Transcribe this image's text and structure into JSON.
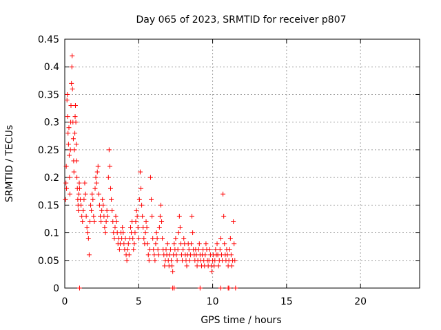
{
  "chart_data": {
    "type": "scatter",
    "title": "Day 065 of 2023, SRMTID for receiver p807",
    "xlabel": "GPS time / hours",
    "ylabel": "SRMTID / TECUs",
    "xlim": [
      0,
      24
    ],
    "ylim": [
      0,
      0.45
    ],
    "xticks": [
      "0",
      "5",
      "10",
      "15",
      "20"
    ],
    "yticks": [
      "0",
      "0.05",
      "0.1",
      "0.15",
      "0.2",
      "0.25",
      "0.3",
      "0.35",
      "0.4",
      "0.45"
    ],
    "xtick_values": [
      0,
      5,
      10,
      15,
      20
    ],
    "ytick_values": [
      0,
      0.05,
      0.1,
      0.15,
      0.2,
      0.25,
      0.3,
      0.35,
      0.4,
      0.45
    ],
    "grid": true,
    "marker": "plus",
    "color": "#ff0000",
    "series": [
      {
        "name": "SRMTID",
        "points": [
          [
            0.05,
            0.16
          ],
          [
            0.08,
            0.19
          ],
          [
            0.1,
            0.22
          ],
          [
            0.12,
            0.18
          ],
          [
            0.15,
            0.34
          ],
          [
            0.18,
            0.35
          ],
          [
            0.2,
            0.31
          ],
          [
            0.22,
            0.28
          ],
          [
            0.25,
            0.26
          ],
          [
            0.28,
            0.29
          ],
          [
            0.3,
            0.24
          ],
          [
            0.32,
            0.2
          ],
          [
            0.35,
            0.17
          ],
          [
            0.38,
            0.25
          ],
          [
            0.4,
            0.3
          ],
          [
            0.42,
            0.33
          ],
          [
            0.45,
            0.37
          ],
          [
            0.48,
            0.4
          ],
          [
            0.5,
            0.42
          ],
          [
            0.52,
            0.36
          ],
          [
            0.55,
            0.3
          ],
          [
            0.58,
            0.27
          ],
          [
            0.6,
            0.23
          ],
          [
            0.62,
            0.21
          ],
          [
            0.65,
            0.25
          ],
          [
            0.68,
            0.28
          ],
          [
            0.7,
            0.31
          ],
          [
            0.72,
            0.33
          ],
          [
            0.75,
            0.3
          ],
          [
            0.78,
            0.26
          ],
          [
            0.8,
            0.23
          ],
          [
            0.82,
            0.2
          ],
          [
            0.85,
            0.18
          ],
          [
            0.88,
            0.16
          ],
          [
            0.9,
            0.15
          ],
          [
            0.92,
            0.14
          ],
          [
            0.95,
            0.17
          ],
          [
            0.98,
            0.19
          ],
          [
            1.0,
            0.18
          ],
          [
            1.05,
            0.16
          ],
          [
            1.1,
            0.15
          ],
          [
            1.15,
            0.13
          ],
          [
            1.2,
            0.12
          ],
          [
            1.25,
            0.14
          ],
          [
            1.3,
            0.16
          ],
          [
            1.35,
            0.19
          ],
          [
            1.4,
            0.17
          ],
          [
            1.45,
            0.13
          ],
          [
            1.5,
            0.11
          ],
          [
            1.55,
            0.1
          ],
          [
            1.6,
            0.09
          ],
          [
            1.65,
            0.06
          ],
          [
            1.7,
            0.12
          ],
          [
            1.75,
            0.15
          ],
          [
            1.8,
            0.14
          ],
          [
            1.85,
            0.17
          ],
          [
            1.9,
            0.16
          ],
          [
            1.95,
            0.13
          ],
          [
            2.0,
            0.12
          ],
          [
            2.05,
            0.18
          ],
          [
            2.1,
            0.2
          ],
          [
            2.15,
            0.19
          ],
          [
            2.2,
            0.21
          ],
          [
            2.25,
            0.22
          ],
          [
            2.3,
            0.17
          ],
          [
            2.35,
            0.15
          ],
          [
            2.4,
            0.13
          ],
          [
            2.45,
            0.12
          ],
          [
            2.5,
            0.14
          ],
          [
            2.55,
            0.16
          ],
          [
            2.6,
            0.15
          ],
          [
            2.65,
            0.13
          ],
          [
            2.7,
            0.11
          ],
          [
            2.75,
            0.1
          ],
          [
            2.8,
            0.12
          ],
          [
            2.85,
            0.14
          ],
          [
            2.9,
            0.13
          ],
          [
            2.95,
            0.2
          ],
          [
            3.0,
            0.25
          ],
          [
            3.05,
            0.22
          ],
          [
            3.1,
            0.18
          ],
          [
            3.15,
            0.16
          ],
          [
            3.2,
            0.14
          ],
          [
            3.25,
            0.12
          ],
          [
            3.3,
            0.1
          ],
          [
            3.35,
            0.09
          ],
          [
            3.4,
            0.11
          ],
          [
            3.45,
            0.13
          ],
          [
            3.5,
            0.12
          ],
          [
            3.55,
            0.1
          ],
          [
            3.6,
            0.08
          ],
          [
            3.65,
            0.09
          ],
          [
            3.7,
            0.07
          ],
          [
            3.75,
            0.08
          ],
          [
            3.8,
            0.1
          ],
          [
            3.85,
            0.09
          ],
          [
            3.9,
            0.11
          ],
          [
            3.95,
            0.1
          ],
          [
            4.0,
            0.08
          ],
          [
            4.05,
            0.07
          ],
          [
            4.1,
            0.09
          ],
          [
            4.15,
            0.06
          ],
          [
            4.2,
            0.05
          ],
          [
            4.25,
            0.07
          ],
          [
            4.3,
            0.08
          ],
          [
            4.35,
            0.06
          ],
          [
            4.4,
            0.09
          ],
          [
            4.45,
            0.11
          ],
          [
            4.5,
            0.1
          ],
          [
            4.55,
            0.12
          ],
          [
            4.6,
            0.09
          ],
          [
            4.65,
            0.07
          ],
          [
            4.7,
            0.08
          ],
          [
            4.75,
            0.1
          ],
          [
            4.8,
            0.12
          ],
          [
            4.85,
            0.14
          ],
          [
            4.9,
            0.13
          ],
          [
            4.95,
            0.11
          ],
          [
            5.0,
            0.09
          ],
          [
            5.05,
            0.16
          ],
          [
            5.1,
            0.21
          ],
          [
            5.15,
            0.18
          ],
          [
            5.2,
            0.15
          ],
          [
            5.25,
            0.13
          ],
          [
            5.3,
            0.11
          ],
          [
            5.35,
            0.09
          ],
          [
            5.4,
            0.08
          ],
          [
            5.45,
            0.1
          ],
          [
            5.5,
            0.12
          ],
          [
            5.55,
            0.11
          ],
          [
            5.6,
            0.08
          ],
          [
            5.65,
            0.06
          ],
          [
            5.7,
            0.05
          ],
          [
            5.75,
            0.07
          ],
          [
            5.8,
            0.2
          ],
          [
            5.85,
            0.16
          ],
          [
            5.9,
            0.13
          ],
          [
            5.95,
            0.09
          ],
          [
            6.0,
            0.07
          ],
          [
            6.05,
            0.06
          ],
          [
            6.1,
            0.05
          ],
          [
            6.15,
            0.08
          ],
          [
            6.2,
            0.1
          ],
          [
            6.25,
            0.09
          ],
          [
            6.3,
            0.07
          ],
          [
            6.35,
            0.06
          ],
          [
            6.4,
            0.11
          ],
          [
            6.45,
            0.13
          ],
          [
            6.5,
            0.15
          ],
          [
            6.55,
            0.12
          ],
          [
            6.6,
            0.09
          ],
          [
            6.65,
            0.07
          ],
          [
            6.7,
            0.06
          ],
          [
            6.75,
            0.04
          ],
          [
            6.8,
            0.05
          ],
          [
            6.85,
            0.07
          ],
          [
            6.9,
            0.06
          ],
          [
            6.95,
            0.08
          ],
          [
            7.0,
            0.05
          ],
          [
            7.05,
            0.04
          ],
          [
            7.1,
            0.06
          ],
          [
            7.15,
            0.07
          ],
          [
            7.2,
            0.05
          ],
          [
            7.25,
            0.04
          ],
          [
            7.3,
            0.03
          ],
          [
            7.35,
            0.06
          ],
          [
            7.4,
            0.08
          ],
          [
            7.45,
            0.07
          ],
          [
            7.5,
            0.09
          ],
          [
            7.55,
            0.06
          ],
          [
            7.6,
            0.05
          ],
          [
            7.65,
            0.07
          ],
          [
            7.7,
            0.1
          ],
          [
            7.75,
            0.13
          ],
          [
            7.8,
            0.11
          ],
          [
            7.85,
            0.08
          ],
          [
            7.9,
            0.06
          ],
          [
            7.95,
            0.05
          ],
          [
            8.0,
            0.07
          ],
          [
            8.05,
            0.09
          ],
          [
            8.1,
            0.08
          ],
          [
            8.15,
            0.06
          ],
          [
            8.2,
            0.05
          ],
          [
            8.25,
            0.04
          ],
          [
            8.3,
            0.06
          ],
          [
            8.35,
            0.08
          ],
          [
            8.4,
            0.07
          ],
          [
            8.45,
            0.05
          ],
          [
            8.5,
            0.06
          ],
          [
            8.55,
            0.08
          ],
          [
            8.6,
            0.13
          ],
          [
            8.65,
            0.1
          ],
          [
            8.7,
            0.07
          ],
          [
            8.75,
            0.06
          ],
          [
            8.8,
            0.05
          ],
          [
            8.85,
            0.07
          ],
          [
            8.9,
            0.06
          ],
          [
            8.95,
            0.04
          ],
          [
            9.0,
            0.05
          ],
          [
            9.05,
            0.07
          ],
          [
            9.1,
            0.08
          ],
          [
            9.15,
            0.06
          ],
          [
            9.2,
            0.05
          ],
          [
            9.25,
            0.04
          ],
          [
            9.3,
            0.06
          ],
          [
            9.35,
            0.07
          ],
          [
            9.4,
            0.05
          ],
          [
            9.45,
            0.04
          ],
          [
            9.5,
            0.06
          ],
          [
            9.55,
            0.08
          ],
          [
            9.6,
            0.07
          ],
          [
            9.65,
            0.05
          ],
          [
            9.7,
            0.04
          ],
          [
            9.75,
            0.05
          ],
          [
            9.8,
            0.07
          ],
          [
            9.85,
            0.06
          ],
          [
            9.9,
            0.04
          ],
          [
            9.95,
            0.03
          ],
          [
            10.0,
            0.05
          ],
          [
            10.05,
            0.06
          ],
          [
            10.1,
            0.04
          ],
          [
            10.15,
            0.05
          ],
          [
            10.2,
            0.07
          ],
          [
            10.25,
            0.06
          ],
          [
            10.3,
            0.08
          ],
          [
            10.35,
            0.06
          ],
          [
            10.4,
            0.04
          ],
          [
            10.45,
            0.05
          ],
          [
            10.5,
            0.07
          ],
          [
            10.55,
            0.09
          ],
          [
            10.6,
            0.06
          ],
          [
            10.65,
            0.05
          ],
          [
            10.7,
            0.17
          ],
          [
            10.75,
            0.13
          ],
          [
            10.8,
            0.08
          ],
          [
            10.85,
            0.06
          ],
          [
            10.9,
            0.05
          ],
          [
            10.95,
            0.07
          ],
          [
            11.0,
            0.06
          ],
          [
            11.05,
            0.04
          ],
          [
            11.1,
            0.05
          ],
          [
            11.15,
            0.07
          ],
          [
            11.2,
            0.09
          ],
          [
            11.25,
            0.06
          ],
          [
            11.3,
            0.04
          ],
          [
            11.35,
            0.05
          ],
          [
            11.4,
            0.12
          ],
          [
            11.45,
            0.08
          ],
          [
            11.5,
            0.05
          ]
        ]
      }
    ],
    "zero_markers_x": [
      1.0,
      7.3,
      7.4,
      9.15,
      10.55,
      11.05,
      11.1,
      11.55
    ]
  }
}
